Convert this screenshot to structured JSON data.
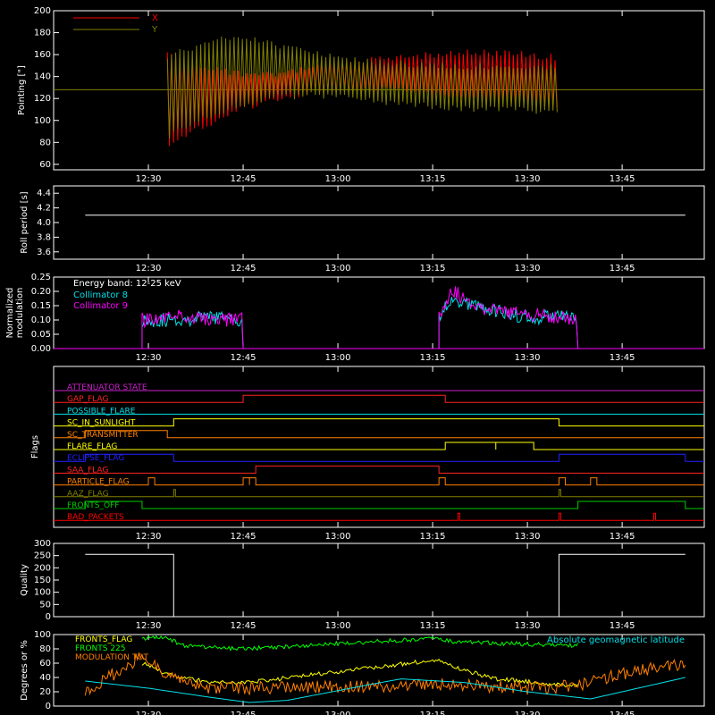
{
  "colors": {
    "background": "#000000",
    "axes": "#ffffff",
    "x_pointing": "#ff0000",
    "y_pointing": "#808000",
    "collimator8": "#00e0e8",
    "collimator9": "#ff00ff",
    "quality": "#ffffff"
  },
  "time_axis": {
    "start_minutes": 735,
    "end_minutes": 838,
    "ticks": [
      "12:30",
      "12:45",
      "13:00",
      "13:15",
      "13:30",
      "13:45"
    ]
  },
  "chart_data": [
    {
      "type": "area",
      "id": "pointing",
      "ylabel": "Pointing [\"]",
      "ylim": [
        55,
        200
      ],
      "yticks": [
        60,
        80,
        100,
        120,
        140,
        160,
        180,
        200
      ],
      "legend_placement": "top-left",
      "series": [
        {
          "name": "X",
          "color": "#ff0000",
          "x": [
            "12:33",
            "12:36",
            "12:40",
            "12:45",
            "12:50",
            "12:55",
            "13:00",
            "13:05",
            "13:10",
            "13:15",
            "13:20",
            "13:25",
            "13:30",
            "13:35"
          ],
          "upper": [
            162,
            158,
            150,
            146,
            145,
            150,
            155,
            158,
            160,
            163,
            165,
            165,
            163,
            160
          ],
          "lower": [
            72,
            85,
            95,
            108,
            115,
            122,
            123,
            125,
            124,
            120,
            116,
            114,
            112,
            110
          ]
        },
        {
          "name": "Y",
          "color": "#808000",
          "x": [
            "12:33",
            "12:36",
            "12:40",
            "12:45",
            "12:50",
            "12:55",
            "13:00",
            "13:05",
            "13:10",
            "13:15",
            "13:20",
            "13:25",
            "13:30",
            "13:35"
          ],
          "upper": [
            162,
            168,
            175,
            180,
            172,
            165,
            160,
            157,
            155,
            153,
            152,
            152,
            152,
            152
          ],
          "lower": [
            80,
            92,
            102,
            112,
            118,
            120,
            119,
            115,
            112,
            110,
            108,
            107,
            106,
            105
          ]
        }
      ],
      "baseline": 128
    },
    {
      "type": "line",
      "id": "roll",
      "ylabel": "Roll period [s]",
      "ylim": [
        3.5,
        4.5
      ],
      "yticks": [
        "3.6",
        "3.8",
        "4.0",
        "4.2",
        "4.4"
      ],
      "series": [
        {
          "name": "",
          "x": [
            "12:20",
            "13:55"
          ],
          "values": [
            4.1,
            4.1
          ]
        }
      ]
    },
    {
      "type": "line",
      "id": "modulation",
      "ylabel_line1": "Normalized",
      "ylabel_line2": "modulation",
      "ylim": [
        0,
        0.25
      ],
      "yticks": [
        "0.00",
        "0.05",
        "0.10",
        "0.15",
        "0.20",
        "0.25"
      ],
      "annotation": "Energy band: 12-25 keV",
      "series": [
        {
          "name": "Collimator 8",
          "color": "#00e0e8",
          "segments": [
            {
              "x": [
                "12:29",
                "12:35",
                "12:40",
                "12:45"
              ],
              "values": [
                0.1,
                0.1,
                0.11,
                0.1
              ]
            },
            {
              "x": [
                "13:16",
                "13:18",
                "13:20",
                "13:25",
                "13:30",
                "13:35",
                "13:38"
              ],
              "values": [
                0.1,
                0.18,
                0.16,
                0.13,
                0.11,
                0.11,
                0.1
              ]
            }
          ]
        },
        {
          "name": "Collimator 9",
          "color": "#ff00ff",
          "segments": [
            {
              "x": [
                "12:29",
                "12:35",
                "12:40",
                "12:45"
              ],
              "values": [
                0.1,
                0.11,
                0.1,
                0.1
              ]
            },
            {
              "x": [
                "13:16",
                "13:18",
                "13:20",
                "13:25",
                "13:30",
                "13:35",
                "13:38"
              ],
              "values": [
                0.11,
                0.21,
                0.17,
                0.13,
                0.12,
                0.11,
                0.1
              ]
            }
          ]
        }
      ]
    },
    {
      "type": "line",
      "id": "flags",
      "ylabel": "Flags",
      "flags": [
        {
          "name": "ATTENUATOR STATE",
          "color": "#cc22cc",
          "high": []
        },
        {
          "name": "GAP_FLAG",
          "color": "#ff2222",
          "high": [
            [
              "12:45",
              "13:17"
            ]
          ]
        },
        {
          "name": "POSSIBLE_FLARE",
          "color": "#00e0e8",
          "high": []
        },
        {
          "name": "SC_IN_SUNLIGHT",
          "color": "#ffff00",
          "high": [
            [
              "12:34",
              "13:35"
            ]
          ]
        },
        {
          "name": "SC_TRANSMITTER",
          "color": "#ff8000",
          "high": [
            [
              "12:20",
              "12:33"
            ]
          ]
        },
        {
          "name": "FLARE_FLAG",
          "color": "#ffff00",
          "high": [
            [
              "13:17",
              "13:25"
            ],
            [
              "13:25",
              "13:31"
            ]
          ]
        },
        {
          "name": "ECLIPSE_FLAG",
          "color": "#2222ff",
          "high": [
            [
              "12:20",
              "12:34"
            ],
            [
              "13:35",
              "13:55"
            ]
          ]
        },
        {
          "name": "SAA_FLAG",
          "color": "#ff2222",
          "high": [
            [
              "12:47",
              "13:16"
            ]
          ]
        },
        {
          "name": "PARTICLE_FLAG",
          "color": "#ff8000",
          "high": [
            [
              "12:30",
              "12:31"
            ],
            [
              "12:45",
              "12:46"
            ],
            [
              "12:46",
              "12:47"
            ],
            [
              "13:16",
              "13:17"
            ],
            [
              "13:35",
              "13:36"
            ],
            [
              "13:40",
              "13:41"
            ]
          ]
        },
        {
          "name": "AAZ_FLAG",
          "color": "#808000",
          "high": [
            [
              "12:34",
              "12:34"
            ],
            [
              "13:35",
              "13:35"
            ]
          ]
        },
        {
          "name": "FRONTS_OFF",
          "color": "#00cc00",
          "high": [
            [
              "12:20",
              "12:29"
            ],
            [
              "13:38",
              "13:55"
            ]
          ]
        },
        {
          "name": "BAD_PACKETS",
          "color": "#ff0000",
          "high": [
            [
              "13:19",
              "13:19"
            ],
            [
              "13:35",
              "13:35"
            ],
            [
              "13:50",
              "13:50"
            ]
          ]
        }
      ]
    },
    {
      "type": "line",
      "id": "quality",
      "ylabel": "Quality",
      "ylim": [
        0,
        300
      ],
      "yticks": [
        "0",
        "50",
        "100",
        "150",
        "200",
        "250",
        "300"
      ],
      "series": [
        {
          "name": "",
          "color": "#ffffff",
          "x": [
            "12:20",
            "12:34",
            "12:34",
            "13:35",
            "13:35",
            "13:55"
          ],
          "values": [
            255,
            255,
            0,
            0,
            255,
            255
          ]
        }
      ]
    },
    {
      "type": "line",
      "id": "degrees",
      "ylabel": "Degrees or %",
      "ylim": [
        0,
        100
      ],
      "yticks": [
        "0",
        "20",
        "40",
        "60",
        "80",
        "100"
      ],
      "series": [
        {
          "name": "FRONTS_FLAG",
          "color": "#ffff00",
          "x": [
            "12:29",
            "12:33",
            "12:35",
            "12:40",
            "12:45",
            "13:16",
            "13:18",
            "13:25",
            "13:35",
            "13:38"
          ],
          "values": [
            60,
            45,
            40,
            33,
            32,
            65,
            55,
            38,
            30,
            28
          ]
        },
        {
          "name": "FRONTS 225",
          "color": "#00ff00",
          "x": [
            "12:29",
            "12:33",
            "12:35",
            "12:40",
            "12:45",
            "13:16",
            "13:18",
            "13:25",
            "13:35",
            "13:38"
          ],
          "values": [
            95,
            97,
            85,
            82,
            80,
            95,
            90,
            88,
            85,
            85
          ]
        },
        {
          "name": "MODULATION TOT",
          "color": "#ff8000",
          "x": [
            "12:20",
            "12:29",
            "12:33",
            "12:40",
            "12:45",
            "13:16",
            "13:20",
            "13:30",
            "13:38",
            "13:45",
            "13:55"
          ],
          "values": [
            20,
            70,
            40,
            25,
            25,
            30,
            30,
            25,
            28,
            45,
            60
          ]
        },
        {
          "name": "Absolute geomagnetic latitude",
          "color": "#00e0e8",
          "x": [
            "12:20",
            "12:30",
            "12:40",
            "12:46",
            "12:52",
            "13:05",
            "13:10",
            "13:20",
            "13:30",
            "13:40",
            "13:55"
          ],
          "values": [
            35,
            25,
            12,
            5,
            8,
            30,
            38,
            33,
            20,
            10,
            40
          ]
        }
      ]
    }
  ]
}
